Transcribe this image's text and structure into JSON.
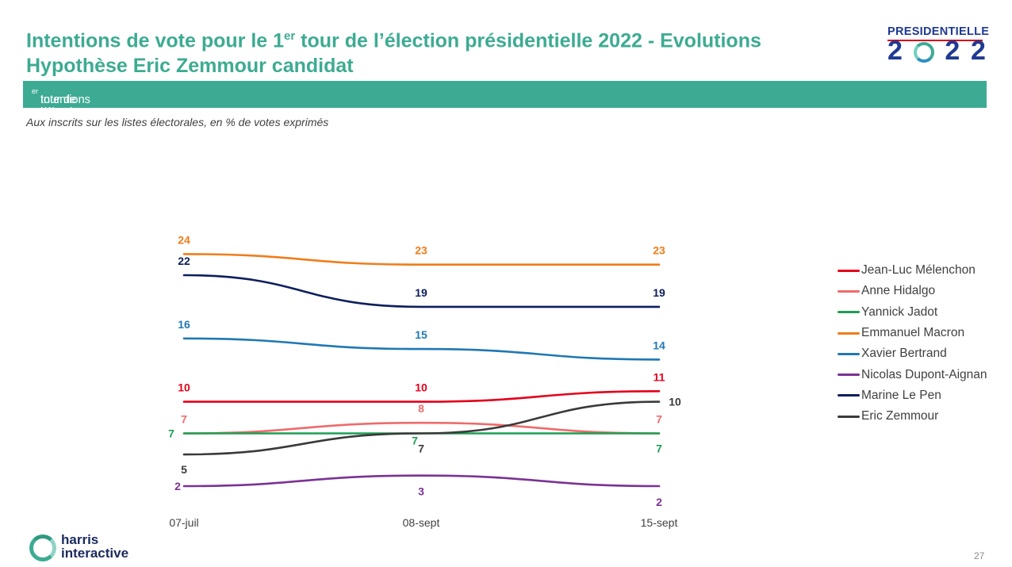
{
  "header": {
    "title_line1_before": "Intentions de vote pour le 1",
    "title_line1_sup": "er",
    "title_line1_after": " tour de l’élection présidentielle 2022 - Evolutions",
    "title_line2": "Hypothèse Eric Zemmour candidat"
  },
  "logo": {
    "top": "PRESIDENTIELLE",
    "digits": [
      "2",
      "2",
      "2"
    ]
  },
  "band": {
    "before": "Intentions de vote pour le 1",
    "sup": "er",
    "after": " tour de l’élection présidentielle 2022"
  },
  "subtitle": "Aux inscrits sur les listes électorales, en % de votes exprimés",
  "chart_data": {
    "type": "line",
    "x": [
      "07-juil",
      "08-sept",
      "15-sept"
    ],
    "ylim": [
      0,
      25
    ],
    "grid": false,
    "legend_position": "right",
    "series": [
      {
        "name": "Jean-Luc Mélenchon",
        "color": "#e3001b",
        "values": [
          10,
          10,
          11
        ]
      },
      {
        "name": "Anne Hidalgo",
        "color": "#ef6b6b",
        "values": [
          7,
          8,
          7
        ]
      },
      {
        "name": "Yannick Jadot",
        "color": "#1e9e52",
        "values": [
          7,
          7,
          7
        ]
      },
      {
        "name": "Emmanuel Macron",
        "color": "#f07d1a",
        "values": [
          24,
          23,
          23
        ]
      },
      {
        "name": "Xavier Bertrand",
        "color": "#1f78b4",
        "values": [
          16,
          15,
          14
        ]
      },
      {
        "name": "Nicolas Dupont-Aignan",
        "color": "#7b3294",
        "values": [
          2,
          3,
          2
        ]
      },
      {
        "name": "Marine Le Pen",
        "color": "#0d1f5c",
        "values": [
          22,
          19,
          19
        ]
      },
      {
        "name": "Eric Zemmour",
        "color": "#3a3a3a",
        "values": [
          5,
          7,
          10
        ]
      }
    ]
  },
  "footer": {
    "brand_line1": "harris",
    "brand_line2": "interactive",
    "page_number": "27"
  }
}
